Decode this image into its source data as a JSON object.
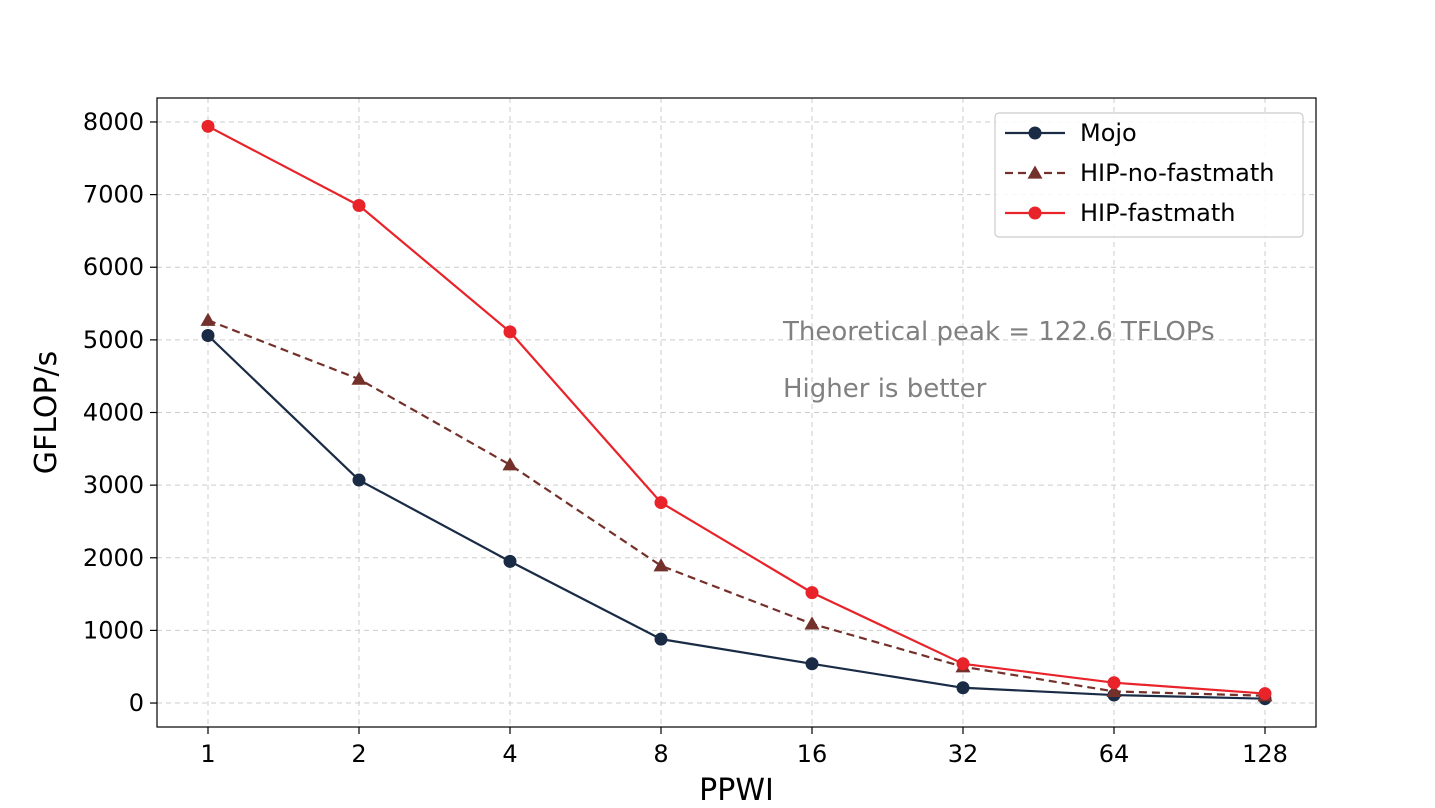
{
  "chart_data": {
    "type": "line",
    "title": "",
    "xlabel": "PPWI",
    "ylabel": "GFLOP/s",
    "categories": [
      "1",
      "2",
      "4",
      "8",
      "16",
      "32",
      "64",
      "128"
    ],
    "ylim": [
      -330,
      8330
    ],
    "yticks": [
      0,
      1000,
      2000,
      3000,
      4000,
      5000,
      6000,
      7000,
      8000
    ],
    "ytick_labels": [
      "0",
      "1000",
      "2000",
      "3000",
      "4000",
      "5000",
      "6000",
      "7000",
      "8000"
    ],
    "grid": true,
    "legend_position": "top-right",
    "series": [
      {
        "name": "Mojo",
        "color": "#1a2b45",
        "line_style": "solid",
        "marker": "circle",
        "values": [
          5060,
          3070,
          1950,
          880,
          540,
          210,
          110,
          60
        ]
      },
      {
        "name": "HIP-no-fastmath",
        "color": "#74302a",
        "line_style": "dashed",
        "marker": "triangle",
        "values": [
          5270,
          4460,
          3280,
          1890,
          1090,
          500,
          160,
          100
        ]
      },
      {
        "name": "HIP-fastmath",
        "color": "#e8232a",
        "line_style": "solid",
        "marker": "circle",
        "values": [
          7940,
          6850,
          5110,
          2760,
          1520,
          540,
          280,
          130
        ]
      }
    ],
    "annotations": [
      "Theoretical peak = 122.6 TFLOPs",
      "Higher is better"
    ]
  }
}
